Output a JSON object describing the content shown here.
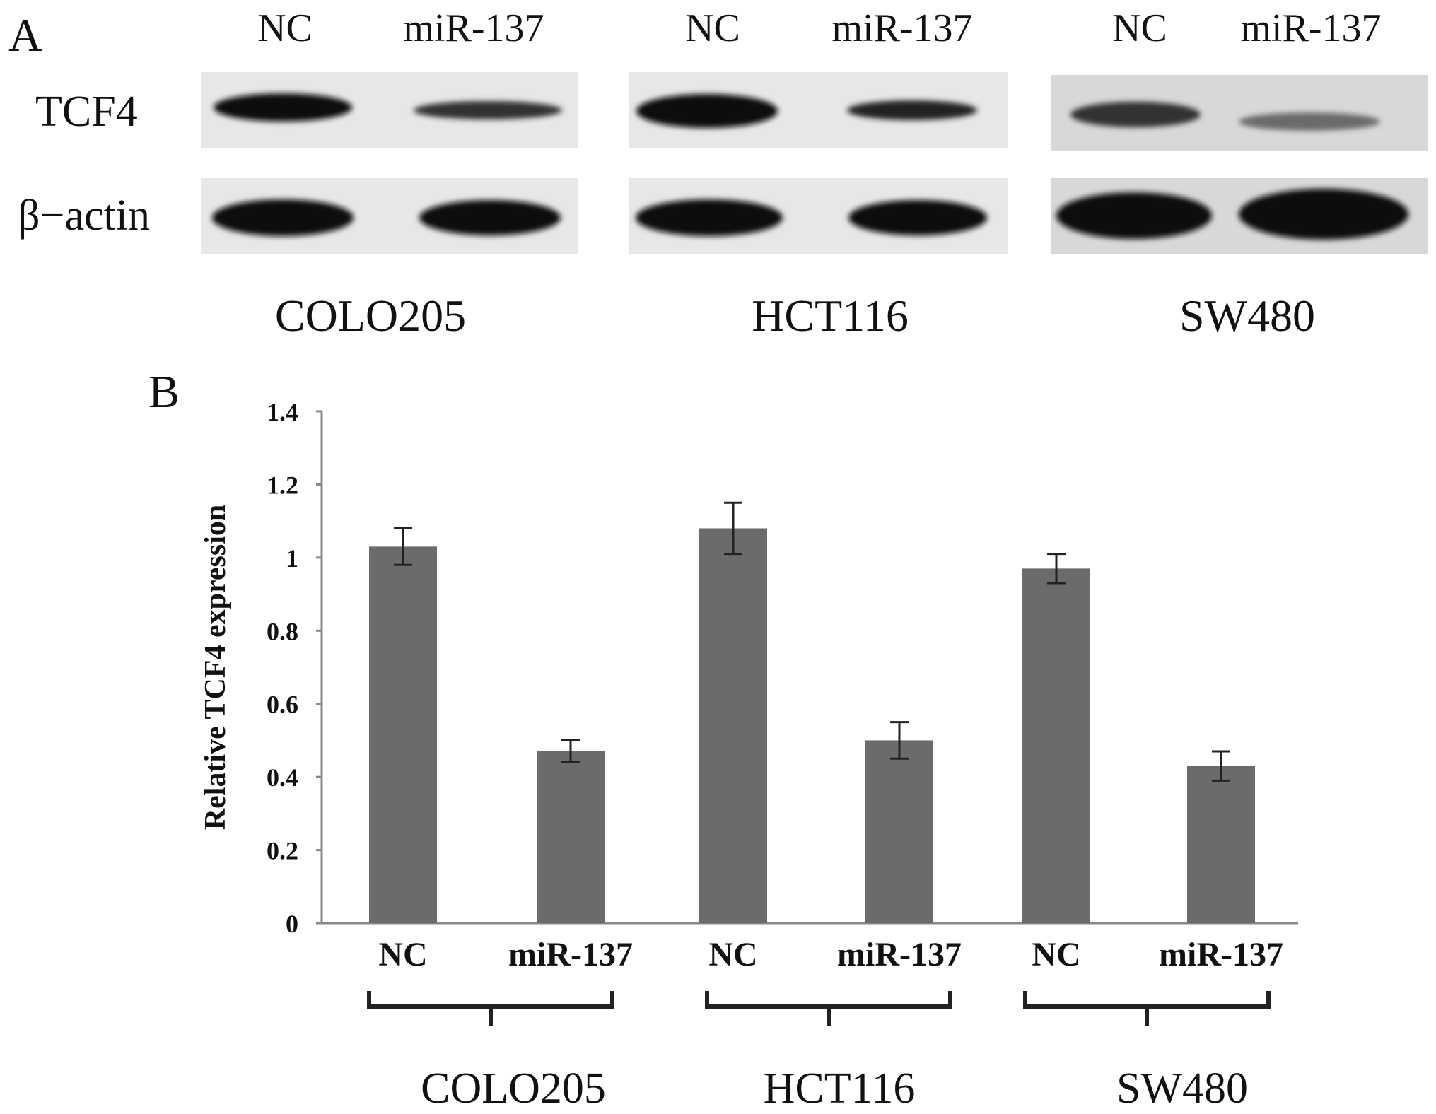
{
  "panel_a": {
    "label": "A",
    "lane_labels": [
      "NC",
      "miR-137"
    ],
    "row_labels": [
      "TCF4",
      "β−actin"
    ],
    "blots": [
      {
        "cell_line": "COLO205"
      },
      {
        "cell_line": "HCT116"
      },
      {
        "cell_line": "SW480"
      }
    ]
  },
  "panel_b": {
    "label": "B"
  },
  "colors": {
    "bar": "#6b6b6b",
    "band": "#111111",
    "axis": "#888888"
  },
  "chart_data": {
    "type": "bar",
    "title": "",
    "xlabel": "",
    "ylabel": "Relative TCF4 expression",
    "ylim": [
      0,
      1.4
    ],
    "yticks": [
      "0",
      "0.2",
      "0.4",
      "0.6",
      "0.8",
      "1",
      "1.2",
      "1.4"
    ],
    "categories": [
      "NC",
      "miR-137",
      "NC",
      "miR-137",
      "NC",
      "miR-137"
    ],
    "groups": [
      "COLO205",
      "HCT116",
      "SW480"
    ],
    "values": [
      1.03,
      0.47,
      1.08,
      0.5,
      0.97,
      0.43
    ],
    "errors": [
      0.05,
      0.03,
      0.07,
      0.05,
      0.04,
      0.04
    ],
    "legend": "none",
    "grid": false
  }
}
